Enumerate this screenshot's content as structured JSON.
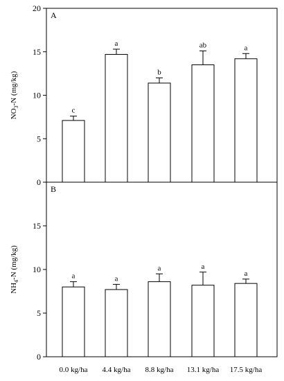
{
  "chart_data": [
    {
      "type": "bar",
      "panel_label": "A",
      "ylabel_parts": [
        "NO",
        "3",
        "-N (mg/kg)"
      ],
      "categories": [
        "0.0 kg/ha",
        "4.4 kg/ha",
        "8.8 kg/ha",
        "13.1 kg/ha",
        "17.5 kg/ha"
      ],
      "values": [
        7.1,
        14.7,
        11.4,
        13.5,
        14.2
      ],
      "errors": [
        0.5,
        0.6,
        0.6,
        1.6,
        0.6
      ],
      "significance": [
        "c",
        "a",
        "b",
        "ab",
        "a"
      ],
      "ylim": [
        0,
        20
      ],
      "yticks": [
        0,
        5,
        10,
        15,
        20
      ],
      "xtick_labels_shown": false
    },
    {
      "type": "bar",
      "panel_label": "B",
      "ylabel_parts": [
        "NH",
        "4",
        "-N (mg/kg)"
      ],
      "categories": [
        "0.0 kg/ha",
        "4.4 kg/ha",
        "8.8 kg/ha",
        "13.1 kg/ha",
        "17.5 kg/ha"
      ],
      "values": [
        8.0,
        7.7,
        8.6,
        8.2,
        8.4
      ],
      "errors": [
        0.6,
        0.6,
        0.9,
        1.5,
        0.5
      ],
      "significance": [
        "a",
        "a",
        "a",
        "a",
        "a"
      ],
      "ylim": [
        0,
        20
      ],
      "yticks": [
        0,
        5,
        10,
        15
      ],
      "xtick_labels_shown": true
    }
  ]
}
